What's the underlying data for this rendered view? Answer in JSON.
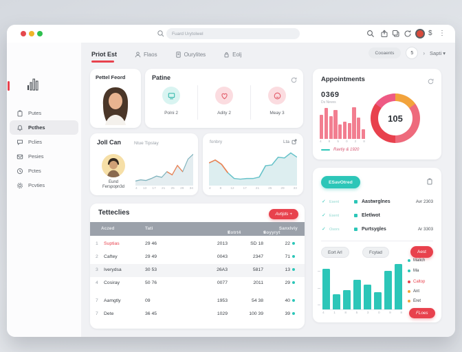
{
  "colors": {
    "red": "#e8414d",
    "teal": "#2cc6b8",
    "orange": "#f2a33c",
    "pink": "#f27e90",
    "table_header": "#9ba1aa"
  },
  "topbar": {
    "search_placeholder": "Fuard Urytolwel",
    "dollar_icon": "$",
    "kebab_icon": "⋮"
  },
  "sidebar": {
    "items": [
      {
        "label": "Putes"
      },
      {
        "label": "Pcthes"
      },
      {
        "label": "Pclies"
      },
      {
        "label": "Pesies"
      },
      {
        "label": "Pctes"
      },
      {
        "label": "Pcvties"
      }
    ]
  },
  "tabs": {
    "tab1": "Priot Est",
    "tab2": "Flaos",
    "tab3": "Ourylites",
    "tab4": "Eolj",
    "comments_pill": "Cooaents",
    "page_num": "5",
    "next_chevron": "›",
    "next_label": "Sapti",
    "next_caret": "▾"
  },
  "patient_card": {
    "title": "Pettel Feord"
  },
  "stats_card": {
    "title": "Patine",
    "items": [
      {
        "label": "Polni 2"
      },
      {
        "label": "Adity 2"
      },
      {
        "label": "Meay 3"
      }
    ]
  },
  "profile_card": {
    "title": "Joll Can",
    "subtitle": "Ntue Tipslay",
    "person_name": "Eund",
    "person_sub": "Ferspopn3d"
  },
  "activity_card": {
    "label": "fonbry",
    "link_label": "Lta"
  },
  "table_card": {
    "title": "Tetteclies",
    "button": "Avtijds +",
    "headers": [
      "Aczed",
      "Tati",
      "Eotrt4",
      "Soyyryt",
      "Sanxlviy"
    ],
    "sort_arrow": "▾",
    "rows": [
      {
        "num": "1",
        "name": "Suptias",
        "c1": "29 46",
        "c2": "2013",
        "c3": "SD 18",
        "c4": "22",
        "name_red": true
      },
      {
        "num": "2",
        "name": "Caftey",
        "c1": "29 49",
        "c2": "0043",
        "c3": "2347",
        "c4": "71"
      },
      {
        "num": "3",
        "name": "Iverydsa",
        "c1": "30 53",
        "c2": "26A3",
        "c3": "5817",
        "c4": "13"
      },
      {
        "num": "4",
        "name": "Cosiray",
        "c1": "50 76",
        "c2": "0077",
        "c3": "2011",
        "c4": "29"
      },
      {
        "num": "7",
        "name": "Aamgtly",
        "c1": "09",
        "c2": "1953",
        "c3": "54 38",
        "c4": "40"
      },
      {
        "num": "7",
        "name": "Dete",
        "c1": "36 45",
        "c2": "1029",
        "c3": "100 39",
        "c4": "39"
      }
    ]
  },
  "appointments_card": {
    "title": "Appointments",
    "big_number": "0369",
    "big_sub": "Ds Neves",
    "legend": "Ravtiy & 1920"
  },
  "tasks_card": {
    "pill": "ESavOtred",
    "rows": [
      {
        "check": "✓",
        "check_label": "Esent",
        "label": "Aastwrglnes",
        "value": "Avr 2303"
      },
      {
        "check": "✓",
        "check_label": "Esent",
        "label": "Eletlwot",
        "value": ""
      },
      {
        "check": "✓",
        "check_label": "Osors",
        "label": "Purtsygles",
        "value": "Ar 3303"
      }
    ],
    "pill2": "Eort Arl",
    "pill3": "Fcytad",
    "btn_small": "Aest",
    "btn_bottom": "FLoes",
    "legend": [
      {
        "label": "Malich",
        "color": "#2cc6b8",
        "text": "#3a3f45"
      },
      {
        "label": "Ma",
        "color": "#2cc6b8",
        "text": "#3a3f45"
      },
      {
        "label": "Caltop",
        "color": "#e8414d",
        "text": "#e8414d"
      },
      {
        "label": "Ant",
        "color": "#f2a33c",
        "text": "#3a3f45"
      },
      {
        "label": "Eret",
        "color": "#f2a33c",
        "text": "#3a3f45"
      }
    ]
  },
  "chart_data": [
    {
      "id": "mini-bars",
      "type": "bar",
      "title": "Appointments mini bar chart",
      "values": [
        62,
        80,
        58,
        75,
        38,
        45,
        42,
        82,
        55,
        25
      ],
      "color": "#f27e90",
      "ticks": [
        "4",
        "8",
        "5",
        "0",
        "2",
        "8"
      ]
    },
    {
      "id": "donut",
      "type": "donut",
      "title": "Appointments donut",
      "center_label": "105",
      "segments": [
        {
          "color": "#f2a33c",
          "pct": 15
        },
        {
          "color": "#ee6a7c",
          "pct": 35
        },
        {
          "color": "#e8414d",
          "pct": 35
        },
        {
          "color": "#ee5a84",
          "pct": 15
        }
      ]
    },
    {
      "id": "patient-line",
      "type": "line",
      "title": "Joll Can trend",
      "values": [
        5,
        7,
        6,
        9,
        13,
        11,
        20,
        15,
        30,
        20,
        40,
        48
      ],
      "color": "#7fb3bd",
      "fill": "#e4edf0",
      "highlight": {
        "color": "#ef8354",
        "from": 6,
        "to": 9
      },
      "ticks": [
        "4",
        "13",
        "17",
        "21",
        "25",
        "29",
        "34"
      ]
    },
    {
      "id": "activity-line",
      "type": "line",
      "title": "fonbry trend",
      "values": [
        30,
        34,
        28,
        16,
        8,
        7,
        8,
        8,
        10,
        26,
        27,
        38,
        37,
        44,
        38
      ],
      "color": "#66c2c9",
      "fill": "#ddeef0",
      "highlight": {
        "color": "#ef8354",
        "from": 0,
        "to": 3
      },
      "ticks": [
        "4",
        "8",
        "12",
        "17",
        "21",
        "25",
        "29",
        "33"
      ]
    },
    {
      "id": "task-bars",
      "type": "bar",
      "title": "Tasks bar chart",
      "values": [
        58,
        22,
        28,
        42,
        36,
        25,
        55,
        65
      ],
      "color": "#2cc6b8",
      "ticks": [
        "4",
        "1",
        "8",
        "5",
        "3",
        "0",
        "9",
        "8"
      ]
    }
  ]
}
